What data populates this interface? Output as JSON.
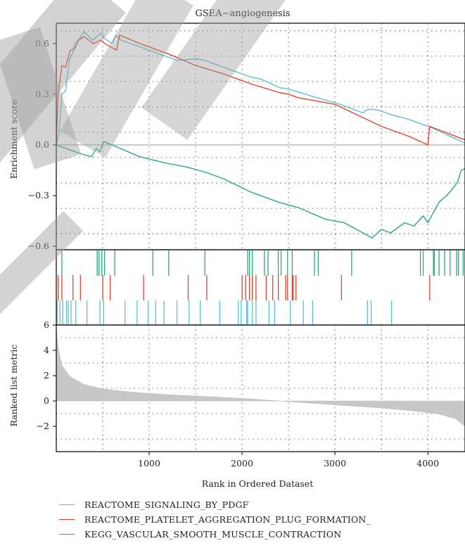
{
  "chart_data": {
    "type": "line",
    "title": "GSEA−angiogenesis",
    "xlabel": "Rank in Ordered Dataset",
    "xlim": [
      0,
      4400
    ],
    "x_ticks": [
      "1000",
      "2000",
      "3000",
      "4000"
    ],
    "panels": {
      "enrichment": {
        "ylabel": "Enrichment score",
        "ylim": [
          -0.62,
          0.72
        ],
        "y_ticks": [
          "0.6",
          "0.3",
          "0.0",
          "−0.3",
          "−0.6"
        ],
        "zero_line": true
      },
      "ranked_metric": {
        "ylabel": "Ranked list metric",
        "ylim": [
          -4,
          6
        ],
        "y_ticks": [
          "6",
          "4",
          "2",
          "0",
          "−2"
        ],
        "fill_color": "#c8c8c8",
        "curve": [
          [
            0,
            5.8
          ],
          [
            20,
            4.2
          ],
          [
            60,
            2.8
          ],
          [
            150,
            1.9
          ],
          [
            300,
            1.3
          ],
          [
            500,
            0.95
          ],
          [
            800,
            0.7
          ],
          [
            1200,
            0.5
          ],
          [
            1600,
            0.35
          ],
          [
            2000,
            0.2
          ],
          [
            2300,
            0.05
          ],
          [
            2600,
            -0.1
          ],
          [
            3000,
            -0.3
          ],
          [
            3400,
            -0.5
          ],
          [
            3800,
            -0.75
          ],
          [
            4100,
            -1.0
          ],
          [
            4300,
            -1.4
          ],
          [
            4400,
            -2.0
          ]
        ]
      }
    },
    "series": [
      {
        "name": "REACTOME_SIGNALING_BY_PDGF",
        "color": "#5bc0d6",
        "points": [
          [
            0,
            0.0
          ],
          [
            30,
            0.07
          ],
          [
            60,
            0.3
          ],
          [
            100,
            0.32
          ],
          [
            140,
            0.5
          ],
          [
            180,
            0.55
          ],
          [
            200,
            0.6
          ],
          [
            240,
            0.62
          ],
          [
            300,
            0.67
          ],
          [
            350,
            0.64
          ],
          [
            400,
            0.62
          ],
          [
            430,
            0.64
          ],
          [
            480,
            0.66
          ],
          [
            520,
            0.63
          ],
          [
            600,
            0.6
          ],
          [
            640,
            0.65
          ],
          [
            700,
            0.62
          ],
          [
            900,
            0.58
          ],
          [
            1100,
            0.54
          ],
          [
            1300,
            0.5
          ],
          [
            1500,
            0.51
          ],
          [
            1600,
            0.5
          ],
          [
            1700,
            0.48
          ],
          [
            1900,
            0.44
          ],
          [
            2100,
            0.4
          ],
          [
            2200,
            0.39
          ],
          [
            2400,
            0.34
          ],
          [
            2500,
            0.33
          ],
          [
            2800,
            0.28
          ],
          [
            3000,
            0.25
          ],
          [
            3300,
            0.19
          ],
          [
            3350,
            0.21
          ],
          [
            3420,
            0.21
          ],
          [
            3500,
            0.2
          ],
          [
            3600,
            0.18
          ],
          [
            3800,
            0.15
          ],
          [
            3950,
            0.12
          ],
          [
            4050,
            0.1
          ],
          [
            4400,
            0.01
          ]
        ]
      },
      {
        "name": "REACTOME_PLATELET_AGGREGATION_PLUG_FORMATION_",
        "color": "#e2442b",
        "points": [
          [
            0,
            0.0
          ],
          [
            20,
            0.3
          ],
          [
            60,
            0.47
          ],
          [
            100,
            0.46
          ],
          [
            150,
            0.56
          ],
          [
            200,
            0.57
          ],
          [
            240,
            0.62
          ],
          [
            300,
            0.64
          ],
          [
            400,
            0.6
          ],
          [
            480,
            0.62
          ],
          [
            520,
            0.6
          ],
          [
            650,
            0.56
          ],
          [
            680,
            0.65
          ],
          [
            900,
            0.6
          ],
          [
            1200,
            0.54
          ],
          [
            1500,
            0.47
          ],
          [
            1800,
            0.42
          ],
          [
            2000,
            0.38
          ],
          [
            2100,
            0.36
          ],
          [
            2400,
            0.31
          ],
          [
            2500,
            0.3
          ],
          [
            2600,
            0.28
          ],
          [
            3000,
            0.24
          ],
          [
            3500,
            0.11
          ],
          [
            3800,
            0.05
          ],
          [
            4000,
            0.0
          ],
          [
            4020,
            0.11
          ],
          [
            4400,
            0.03
          ]
        ]
      },
      {
        "name": "KEGG_VASCULAR_SMOOTH_MUSCLE_CONTRACTION",
        "color": "#2aa87e",
        "points": [
          [
            0,
            0.0
          ],
          [
            150,
            -0.03
          ],
          [
            250,
            -0.05
          ],
          [
            380,
            -0.07
          ],
          [
            430,
            -0.02
          ],
          [
            470,
            -0.04
          ],
          [
            510,
            0.02
          ],
          [
            600,
            0.0
          ],
          [
            900,
            -0.07
          ],
          [
            1200,
            -0.11
          ],
          [
            1400,
            -0.13
          ],
          [
            1600,
            -0.16
          ],
          [
            1800,
            -0.2
          ],
          [
            2100,
            -0.28
          ],
          [
            2400,
            -0.34
          ],
          [
            2600,
            -0.37
          ],
          [
            2900,
            -0.44
          ],
          [
            3100,
            -0.46
          ],
          [
            3300,
            -0.52
          ],
          [
            3400,
            -0.55
          ],
          [
            3500,
            -0.5
          ],
          [
            3600,
            -0.52
          ],
          [
            3750,
            -0.46
          ],
          [
            3850,
            -0.48
          ],
          [
            3950,
            -0.42
          ],
          [
            4000,
            -0.46
          ],
          [
            4080,
            -0.38
          ],
          [
            4120,
            -0.34
          ],
          [
            4200,
            -0.3
          ],
          [
            4250,
            -0.27
          ],
          [
            4320,
            -0.22
          ],
          [
            4360,
            -0.15
          ],
          [
            4400,
            -0.14
          ]
        ]
      }
    ],
    "hits": {
      "KEGG_VASCULAR_SMOOTH_MUSCLE_CONTRACTION": [
        60,
        440,
        460,
        490,
        520,
        630,
        1040,
        1210,
        1600,
        2060,
        2080,
        2110,
        2240,
        2280,
        2390,
        2420,
        2490,
        2540,
        2780,
        2820,
        3180,
        3920,
        3950,
        4060,
        4070,
        4120,
        4180,
        4240,
        4310,
        4330,
        4380
      ],
      "REACTOME_PLATELET_AGGREGATION_PLUG_FORMATION_": [
        20,
        60,
        180,
        260,
        500,
        580,
        940,
        1420,
        1620,
        2000,
        2040,
        2080,
        2110,
        2150,
        2260,
        2330,
        2390,
        2470,
        2490,
        2540,
        2550,
        2580,
        3070,
        4020
      ],
      "REACTOME_SIGNALING_BY_PDGF": [
        10,
        40,
        70,
        110,
        130,
        160,
        210,
        330,
        470,
        510,
        740,
        870,
        990,
        1070,
        1160,
        1300,
        1430,
        1550,
        1760,
        1960,
        1990,
        2050,
        2060,
        2110,
        2150,
        2290,
        2350,
        2520,
        2660,
        2760,
        3350,
        3390,
        3610
      ]
    }
  },
  "legend": {
    "items": [
      {
        "label": "REACTOME_SIGNALING_BY_PDGF",
        "color": "#5bc0d6"
      },
      {
        "label": "REACTOME_PLATELET_AGGREGATION_PLUG_FORMATION_",
        "color": "#e2442b"
      },
      {
        "label": "KEGG_VASCULAR_SMOOTH_MUSCLE_CONTRACTION",
        "color": "#2aa87e"
      }
    ]
  }
}
